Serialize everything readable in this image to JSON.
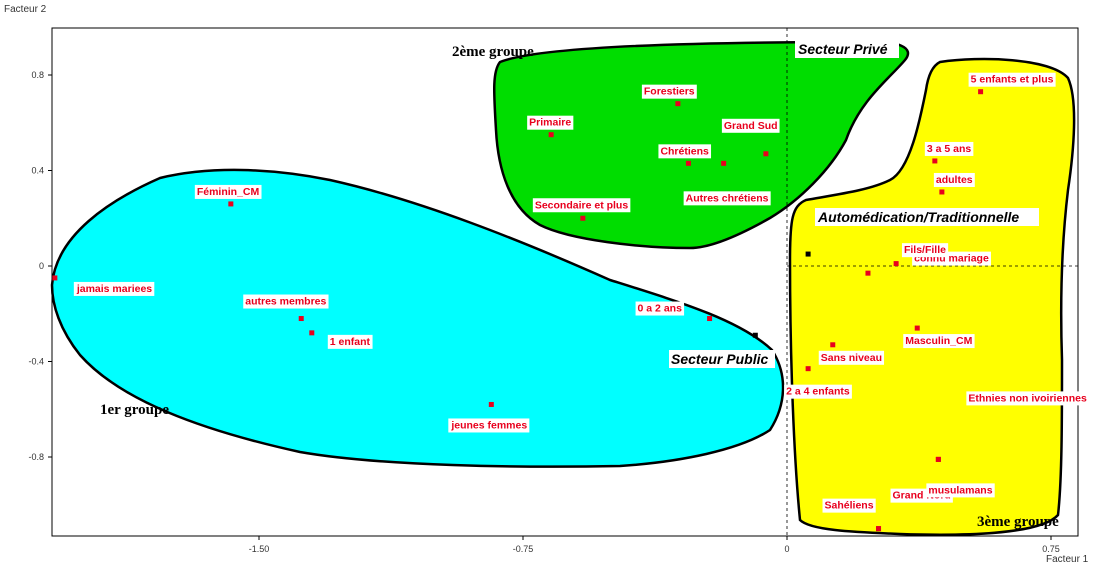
{
  "chart_data": {
    "type": "scatter",
    "xlabel": "Facteur 1",
    "ylabel": "Facteur 2",
    "xlim": [
      -2.1,
      0.85
    ],
    "ylim": [
      -1.12,
      1.0
    ],
    "x_ticks": [
      {
        "value": -1.5,
        "label": "-1.50"
      },
      {
        "value": -0.75,
        "label": "-0.75"
      },
      {
        "value": 0,
        "label": "0"
      },
      {
        "value": 0.75,
        "label": "0.75"
      }
    ],
    "y_ticks": [
      {
        "value": 0.8,
        "label": "0.8"
      },
      {
        "value": 0.4,
        "label": "0.4"
      },
      {
        "value": 0,
        "label": "0"
      },
      {
        "value": -0.4,
        "label": "-0.4"
      },
      {
        "value": -0.8,
        "label": "-0.8"
      }
    ],
    "points": [
      {
        "label": "Forestiers",
        "x": -0.31,
        "y": 0.68,
        "color": "#e8001e"
      },
      {
        "label": "Primaire",
        "x": -0.67,
        "y": 0.55,
        "color": "#e8001e"
      },
      {
        "label": "Grand Sud",
        "x": -0.06,
        "y": 0.47,
        "color": "#e8001e"
      },
      {
        "label": "Chrétiens",
        "x": -0.28,
        "y": 0.43,
        "color": "#e8001e"
      },
      {
        "label": "Autres chrétiens",
        "x": -0.18,
        "y": 0.43,
        "color": "#e8001e"
      },
      {
        "label": "Secondaire et plus",
        "x": -0.58,
        "y": 0.2,
        "color": "#e8001e"
      },
      {
        "label": "5 enfants et plus",
        "x": 0.55,
        "y": 0.73,
        "color": "#e8001e"
      },
      {
        "label": "3 a 5 ans",
        "x": 0.42,
        "y": 0.44,
        "color": "#e8001e"
      },
      {
        "label": "adultes",
        "x": 0.44,
        "y": 0.31,
        "color": "#e8001e"
      },
      {
        "label": "Automédication/Traditionnelle",
        "x": 0.06,
        "y": 0.05,
        "color": "#000000"
      },
      {
        "label": "connu mariage",
        "x": 0.31,
        "y": 0.01,
        "color": "#e8001e"
      },
      {
        "label": "Fils/Fille",
        "x": 0.23,
        "y": -0.03,
        "color": "#e8001e"
      },
      {
        "label": "Masculin_CM",
        "x": 0.37,
        "y": -0.26,
        "color": "#e8001e"
      },
      {
        "label": "Sans niveau",
        "x": 0.13,
        "y": -0.33,
        "color": "#e8001e"
      },
      {
        "label": "2 a 4 enfants",
        "x": 0.06,
        "y": -0.43,
        "color": "#e8001e"
      },
      {
        "label": "Ethnies non ivoiriennes",
        "x": 0.43,
        "y": -0.81,
        "color": "#e8001e"
      },
      {
        "label": "Grand Nord",
        "x": 0.26,
        "y": -1.1,
        "color": "#e8001e"
      },
      {
        "label": "Secteur Public",
        "x": -0.09,
        "y": -0.29,
        "color": "#000000"
      },
      {
        "label": "0 a 2 ans",
        "x": -0.22,
        "y": -0.22,
        "color": "#e8001e"
      },
      {
        "label": "jeunes femmes",
        "x": -0.84,
        "y": -0.58,
        "color": "#e8001e"
      },
      {
        "label": "Féminin_CM",
        "x": -1.58,
        "y": 0.26,
        "color": "#e8001e"
      },
      {
        "label": "jamais mariees",
        "x": -2.08,
        "y": -0.05,
        "color": "#e8001e"
      },
      {
        "label": "autres membres",
        "x": -1.38,
        "y": -0.22,
        "color": "#e8001e"
      },
      {
        "label": "1 enfant",
        "x": -1.35,
        "y": -0.28,
        "color": "#e8001e"
      },
      {
        "label": "musulamans",
        "x": 0.43,
        "y": -0.81,
        "color": "#e8001e"
      },
      {
        "label": "Sahéliens",
        "x": 0.26,
        "y": -1.1,
        "color": "#e8001e"
      }
    ],
    "labels": {
      "forestiers": "Forestiers",
      "primaire": "Primaire",
      "grand_sud": "Grand Sud",
      "chretiens": "Chrétiens",
      "autres_chretiens": "Autres chrétiens",
      "secondaire": "Secondaire et plus",
      "cinq_enfants": "5 enfants et plus",
      "trois_cinq": "3 a 5 ans",
      "adultes": "adultes",
      "automedication": "Automédication/Traditionnelle",
      "connu_mariage": "connu mariage",
      "fils_fille": "Fils/Fille",
      "masculin": "Masculin_CM",
      "sans_niveau": "Sans niveau",
      "deux_quatre": "2 a 4 enfants",
      "ethnies": "Ethnies non ivoiriennes",
      "grand_nord": "Grand Nord",
      "musulamans": "musulamans",
      "saheliens": "Sahéliens",
      "secteur_public": "Secteur Public",
      "secteur_prive": "Secteur Privé",
      "zero_deux": "0 a 2 ans",
      "jeunes_femmes": "jeunes femmes",
      "feminin": "Féminin_CM",
      "jamais_mariees": "jamais mariees",
      "autres_membres": "autres membres",
      "un_enfant": "1 enfant"
    },
    "groups": [
      {
        "name": "1er groupe",
        "color": "#00ffff"
      },
      {
        "name": "2ème groupe",
        "color": "#00dd00"
      },
      {
        "name": "3ème groupe",
        "color": "#ffff00"
      }
    ]
  }
}
